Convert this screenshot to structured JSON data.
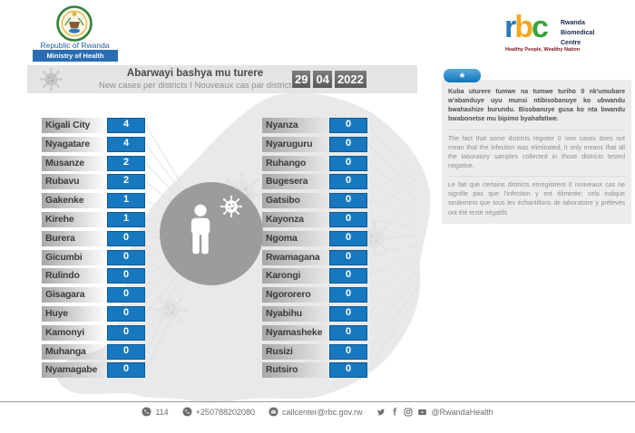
{
  "header": {
    "gov": {
      "line1": "Republic of Rwanda",
      "line2": "Ministry of Health"
    },
    "rbc": {
      "r": "r",
      "b": "b",
      "c": "c",
      "name1": "Rwanda",
      "name2": "Biomedical",
      "name3": "Centre",
      "tagline": "Healthy People, Wealthy Nation"
    }
  },
  "title_bar": {
    "title": "Abarwayi bashya mu turere",
    "subtitle": "New cases per districts I Nouveaux cas par district",
    "date_day": "29",
    "date_month": "04",
    "date_year": "2022"
  },
  "note": {
    "tab": "*",
    "rw": "Kuba uturere tumwe na tumwe turiho 0 nk'umubare w'abanduye uyu munsi ntibisobanuye ko ubwandu bwahashize burundu. Bisobanuye gusa ko nta bwandu bwabonetse mu bipimo byahafatiwe.",
    "en": "The fact that some districts register 0 new cases does not mean that the infection was eliminated; it only means that all the laboratory samples collected in those districts tested negative.",
    "fr": "Le fait que certains districts enregistrent 0 nouveaux cas ne signifie pas que l'infection y est éliminée; cela indique seulement que tous les échantillons de laboratoire y prélevés ont été testé négatifs"
  },
  "chart_data": {
    "type": "table",
    "title": "Abarwayi bashya mu turere",
    "subtitle": "New cases per districts I Nouveaux cas par district",
    "date": "29/04/2022",
    "categories": [
      "Kigali City",
      "Nyagatare",
      "Musanze",
      "Rubavu",
      "Gakenke",
      "Kirehe",
      "Burera",
      "Gicumbi",
      "Rulindo",
      "Gisagara",
      "Huye",
      "Kamonyi",
      "Muhanga",
      "Nyamagabe",
      "Nyanza",
      "Nyaruguru",
      "Ruhango",
      "Bugesera",
      "Gatsibo",
      "Kayonza",
      "Ngoma",
      "Rwamagana",
      "Karongi",
      "Ngororero",
      "Nyabihu",
      "Nyamasheke",
      "Rusizi",
      "Rutsiro"
    ],
    "values": [
      4,
      4,
      2,
      2,
      1,
      1,
      0,
      0,
      0,
      0,
      0,
      0,
      0,
      0,
      0,
      0,
      0,
      0,
      0,
      0,
      0,
      0,
      0,
      0,
      0,
      0,
      0,
      0
    ]
  },
  "footer": {
    "phone_short": "114",
    "phone_long": "+250788202080",
    "email": "callcenter@rbc.gov.rw",
    "handle": "@RwandaHealth"
  },
  "colors": {
    "value_box_blue": "#1878bf",
    "value_box_border": "#0d5a92",
    "note_tab_blue": "#1273b9",
    "title_bar_gray": "#e4e4e5",
    "date_box_gray": "#666666",
    "map_gray": "#e9e9ea",
    "badge_circle_gray": "#9c9c9c",
    "ministry_blue": "#2a6db4"
  }
}
